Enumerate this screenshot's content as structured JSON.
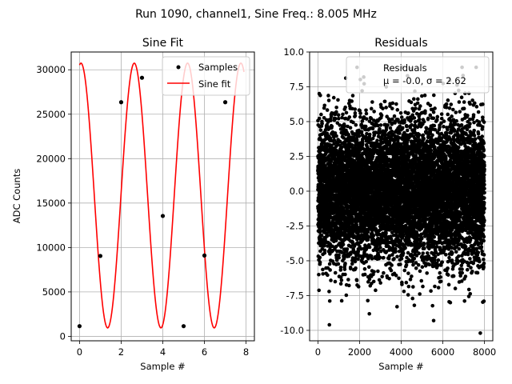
{
  "figure": {
    "suptitle": "Run 1090, channel1, Sine Freq.: 8.005 MHz"
  },
  "chart_data": [
    {
      "type": "scatter+line",
      "title": "Sine Fit",
      "xlabel": "Sample #",
      "ylabel": "ADC Counts",
      "xlim": [
        -0.4,
        8.4
      ],
      "ylim": [
        -500,
        32000
      ],
      "xticks": [
        0,
        2,
        4,
        6,
        8
      ],
      "yticks": [
        0,
        5000,
        10000,
        15000,
        20000,
        25000,
        30000
      ],
      "grid": true,
      "legend": {
        "position": "top-right",
        "entries": [
          {
            "label": "Samples",
            "marker": "dot",
            "color": "#000000"
          },
          {
            "label": "Sine fit",
            "marker": "line",
            "color": "#ff0000"
          }
        ]
      },
      "samples": {
        "name": "Samples",
        "x": [
          0,
          1,
          2,
          3,
          4,
          5,
          6,
          7
        ],
        "y": [
          1150,
          9050,
          26350,
          29100,
          13550,
          1150,
          9100,
          26350
        ]
      },
      "fit": {
        "name": "Sine fit",
        "x_range": [
          0,
          7.9
        ],
        "amplitude": 14900,
        "offset": 15850,
        "freq_cycles_per_sample": 0.3906,
        "phase_at_peak_x": 2.63
      }
    },
    {
      "type": "scatter",
      "title": "Residuals",
      "xlabel": "Sample #",
      "ylabel": "",
      "xlim": [
        -400,
        8400
      ],
      "ylim": [
        -10.75,
        10.0
      ],
      "xticks": [
        0,
        2000,
        4000,
        6000,
        8000
      ],
      "yticks": [
        -10.0,
        -7.5,
        -5.0,
        -2.5,
        0.0,
        2.5,
        5.0,
        7.5,
        10.0
      ],
      "grid": true,
      "n_points": 8000,
      "mu": -0.0,
      "sigma": 2.62,
      "legend": {
        "position": "top-right",
        "label": "Residuals",
        "stats_label": "μ = -0.0, σ = 2.62"
      },
      "extremes": [
        {
          "x": 7800,
          "y": -10.2
        },
        {
          "x": 550,
          "y": -9.6
        },
        {
          "x": 2200,
          "y": 8.2
        },
        {
          "x": 7600,
          "y": 8.9
        },
        {
          "x": 3800,
          "y": -8.3
        }
      ]
    }
  ]
}
